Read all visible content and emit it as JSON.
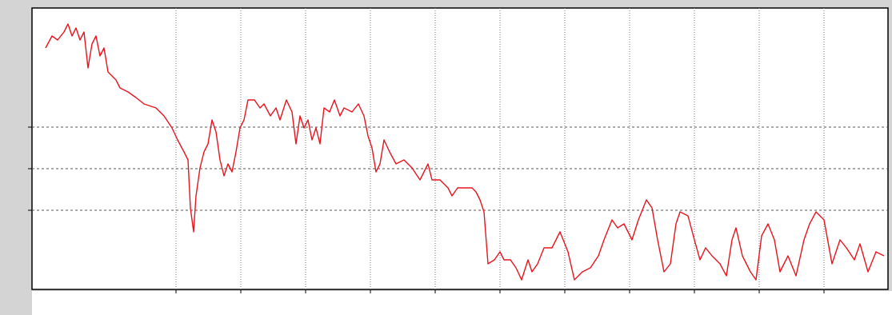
{
  "chart_data": {
    "type": "line",
    "x": [
      0,
      8,
      15,
      23,
      28,
      33,
      38,
      43,
      48,
      53,
      58,
      63,
      68,
      73,
      78,
      83,
      88,
      93,
      103,
      113,
      123,
      138,
      148,
      158,
      165,
      173,
      178,
      181,
      185,
      188,
      193,
      198,
      203,
      208,
      213,
      218,
      223,
      228,
      233,
      238,
      243,
      248,
      253,
      261,
      268,
      273,
      281,
      288,
      293,
      301,
      308,
      313,
      318,
      323,
      328,
      333,
      338,
      343,
      348,
      355,
      361,
      368,
      373,
      383,
      391,
      398,
      403,
      408,
      413,
      418,
      423,
      430,
      438,
      448,
      458,
      468,
      478,
      483,
      493,
      503,
      508,
      515,
      523,
      533,
      538,
      543,
      548,
      553,
      561,
      568,
      573,
      581,
      588,
      595,
      603,
      608,
      615,
      623,
      633,
      643,
      653,
      661,
      671,
      681,
      691,
      698,
      708,
      715,
      723,
      733,
      741,
      751,
      758,
      765,
      773,
      781,
      788,
      793,
      803,
      811,
      818,
      825,
      833,
      843,
      851,
      858,
      863,
      871,
      881,
      888,
      895,
      903,
      911,
      918,
      928,
      938,
      948,
      955,
      963,
      973,
      983,
      993,
      1001,
      1011,
      1018,
      1028,
      1038,
      1048
    ],
    "series": [
      {
        "color": "#e8141e",
        "values": [
          302,
          317,
          312,
          322,
          332,
          317,
          327,
          312,
          322,
          277,
          307,
          317,
          292,
          302,
          272,
          267,
          262,
          252,
          247,
          240,
          232,
          227,
          217,
          202,
          187,
          172,
          162,
          102,
          72,
          117,
          152,
          172,
          182,
          212,
          197,
          162,
          142,
          157,
          147,
          172,
          202,
          212,
          237,
          237,
          227,
          232,
          217,
          227,
          212,
          237,
          222,
          182,
          217,
          202,
          212,
          187,
          202,
          182,
          227,
          222,
          237,
          217,
          227,
          222,
          232,
          217,
          192,
          177,
          147,
          157,
          187,
          172,
          157,
          162,
          152,
          137,
          157,
          137,
          137,
          127,
          117,
          127,
          127,
          127,
          122,
          112,
          97,
          32,
          37,
          47,
          37,
          37,
          27,
          12,
          37,
          22,
          32,
          52,
          52,
          72,
          47,
          12,
          22,
          27,
          42,
          62,
          87,
          77,
          82,
          62,
          87,
          112,
          102,
          62,
          22,
          32,
          82,
          97,
          92,
          62,
          37,
          52,
          42,
          32,
          17,
          62,
          77,
          42,
          22,
          12,
          67,
          82,
          62,
          22,
          42,
          17,
          62,
          82,
          97,
          87,
          32,
          62,
          52,
          37,
          57,
          22,
          47,
          42
        ]
      }
    ],
    "xlim": [
      -17,
      1053
    ],
    "ylim": [
      0,
      352
    ],
    "xticks": [
      163,
      244,
      325,
      406,
      487,
      568,
      649,
      730,
      811,
      892,
      973
    ],
    "yticks": [
      99,
      151,
      203
    ],
    "grid": true
  }
}
